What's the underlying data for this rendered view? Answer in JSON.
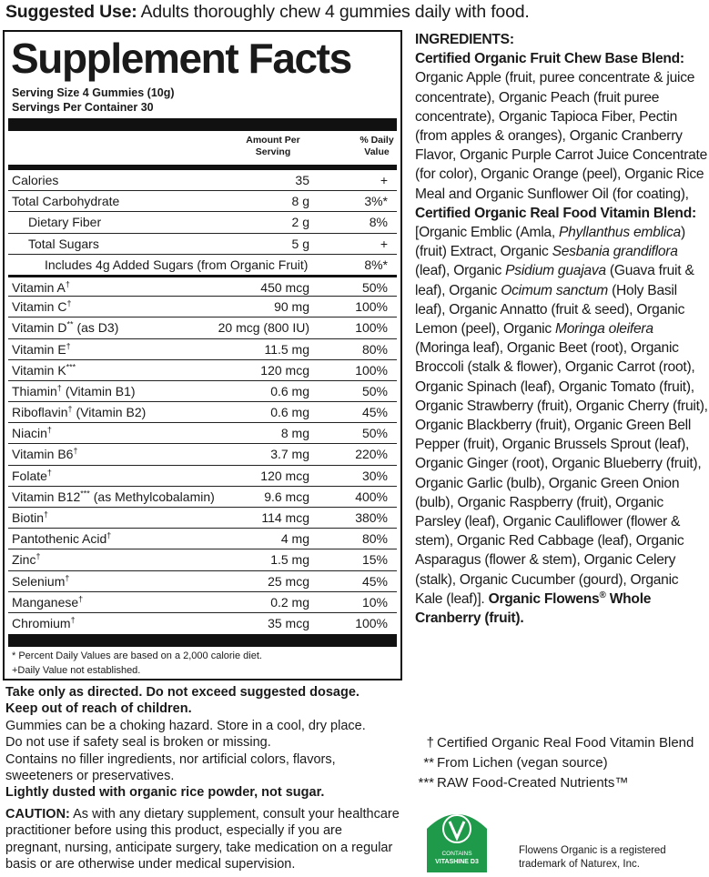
{
  "suggested_use": {
    "label": "Suggested Use:",
    "text": "Adults thoroughly chew 4 gummies daily with food."
  },
  "facts": {
    "title": "Supplement Facts",
    "serving_size": "Serving Size 4 Gummies (10g)",
    "servings": "Servings Per Container 30",
    "col_amount": "Amount Per Serving",
    "col_dv": "% Daily Value",
    "rows": [
      {
        "name": "Calories",
        "amount": "35",
        "dv": "+"
      },
      {
        "name": "Total Carbohydrate",
        "amount": "8 g",
        "dv": "3%*"
      },
      {
        "name": "Dietary Fiber",
        "indent": 1,
        "amount": "2 g",
        "dv": "8%"
      },
      {
        "name": "Total Sugars",
        "indent": 1,
        "amount": "5 g",
        "dv": "+"
      },
      {
        "name": "Includes 4g Added Sugars (from Organic Fruit)",
        "indent": 2,
        "dv": "8%*"
      },
      {
        "name": "Vitamin A",
        "mark": "†",
        "amount": "450 mcg",
        "dv": "50%",
        "rule": "heavy"
      },
      {
        "name": "Vitamin C",
        "mark": "†",
        "amount": "90 mg",
        "dv": "100%"
      },
      {
        "name": "Vitamin D",
        "mark": "**",
        "note": "(as D3)",
        "amount": "20 mcg (800 IU)",
        "dv": "100%"
      },
      {
        "name": "Vitamin E",
        "mark": "†",
        "amount": "11.5 mg",
        "dv": "80%"
      },
      {
        "name": "Vitamin K",
        "mark": "***",
        "amount": "120 mcg",
        "dv": "100%"
      },
      {
        "name": "Thiamin",
        "mark": "†",
        "note": "(Vitamin B1)",
        "amount": "0.6 mg",
        "dv": "50%"
      },
      {
        "name": "Riboflavin",
        "mark": "†",
        "note": "(Vitamin B2)",
        "amount": "0.6 mg",
        "dv": "45%"
      },
      {
        "name": "Niacin",
        "mark": "†",
        "amount": "8 mg",
        "dv": "50%"
      },
      {
        "name": "Vitamin B6",
        "mark": "†",
        "amount": "3.7 mg",
        "dv": "220%"
      },
      {
        "name": "Folate",
        "mark": "†",
        "amount": "120 mcg",
        "dv": "30%"
      },
      {
        "name": "Vitamin B12",
        "mark": "***",
        "note": "(as Methylcobalamin)",
        "amount": "9.6 mcg",
        "dv": "400%"
      },
      {
        "name": "Biotin",
        "mark": "†",
        "amount": "114 mcg",
        "dv": "380%"
      },
      {
        "name": "Pantothenic Acid",
        "mark": "†",
        "amount": "4 mg",
        "dv": "80%"
      },
      {
        "name": "Zinc",
        "mark": "†",
        "amount": "1.5 mg",
        "dv": "15%"
      },
      {
        "name": "Selenium",
        "mark": "†",
        "amount": "25 mcg",
        "dv": "45%"
      },
      {
        "name": "Manganese",
        "mark": "†",
        "amount": "0.2 mg",
        "dv": "10%"
      },
      {
        "name": "Chromium",
        "mark": "†",
        "amount": "35 mcg",
        "dv": "100%"
      }
    ],
    "footnotes": [
      "* Percent Daily Values are based on a 2,000 calorie diet.",
      "+Daily Value not established."
    ]
  },
  "warnings": [
    [
      {
        "text": "Take only as directed. Do not exceed suggested dosage.",
        "style": "bold"
      }
    ],
    [
      {
        "text": "Keep out of reach of children.",
        "style": "bold"
      }
    ],
    [
      {
        "text": "Gummies can be a choking hazard. Store in a cool, dry place."
      }
    ],
    [
      {
        "text": "Do not use if safety seal is broken or missing."
      }
    ],
    [
      {
        "text": "Contains no filler ingredients, nor artificial colors, flavors, sweeteners or preservatives."
      }
    ],
    [
      {
        "text": "Lightly dusted with organic rice powder, not sugar.",
        "style": "bold"
      }
    ]
  ],
  "caution": [
    {
      "text": "CAUTION:",
      "style": "bold"
    },
    {
      "text": " As with any dietary supplement, consult your healthcare practitioner before using this product, especially if you are pregnant, nursing, anticipate surgery, take medication on a regular basis or are otherwise under medical supervision."
    }
  ],
  "ingredients": {
    "heading": "INGREDIENTS:",
    "runs": [
      {
        "text": "Certified Organic Fruit Chew Base Blend:",
        "style": "bold"
      },
      {
        "text": " Organic Apple (fruit, puree concentrate & juice concentrate), Organic Peach (fruit puree concentrate), Organic Tapioca Fiber, Pectin (from apples & oranges), Organic Cranberry Flavor, Organic Purple Carrot Juice Concentrate (for color), Organic Orange (peel), Organic Rice Meal and Organic Sunflower Oil (for coating), "
      },
      {
        "text": "Certified Organic Real Food Vitamin Blend:",
        "style": "bold"
      },
      {
        "text": " [Organic Emblic (Amla, "
      },
      {
        "text": "Phyllanthus emblica",
        "style": "italic"
      },
      {
        "text": ") (fruit) Extract, Organic "
      },
      {
        "text": "Sesbania grandiflora",
        "style": "italic"
      },
      {
        "text": " (leaf), Organic "
      },
      {
        "text": "Psidium guajava",
        "style": "italic"
      },
      {
        "text": " (Guava fruit & leaf), Organic "
      },
      {
        "text": "Ocimum sanctum",
        "style": "italic"
      },
      {
        "text": " (Holy Basil leaf), Organic Annatto (fruit & seed), Organic Lemon (peel), Organic "
      },
      {
        "text": "Moringa oleifera",
        "style": "italic"
      },
      {
        "text": " (Moringa leaf), Organic Beet (root), Organic Broccoli (stalk & flower), Organic Carrot (root), Organic Spinach (leaf), Organic Tomato (fruit), Organic Strawberry (fruit), Organic Cherry (fruit), Organic Blackberry (fruit), Organic Green Bell Pepper (fruit), Organic Brussels Sprout (leaf), Organic Ginger (root), Organic Blueberry (fruit), Organic Garlic (bulb), Organic Green Onion (bulb), Organic Raspberry (fruit), Organic Parsley (leaf), Organic Cauliflower (flower & stem), Organic Red Cabbage (leaf), Organic Asparagus (flower & stem), Organic Celery (stalk), Organic Cucumber (gourd), Organic Kale (leaf)]. "
      },
      {
        "text": "Organic Flowens",
        "style": "bold"
      },
      {
        "text": "®",
        "style": "bold-sup"
      },
      {
        "text": " Whole Cranberry (fruit).",
        "style": "bold"
      }
    ]
  },
  "symbols": [
    {
      "mark": "†",
      "text": "Certified Organic Real Food Vitamin Blend"
    },
    {
      "mark": "**",
      "text": "From Lichen (vegan source)"
    },
    {
      "mark": "***",
      "text": "RAW Food-Created Nutrients™"
    }
  ],
  "badge": {
    "line1": "CONTAINS",
    "line2": "VITASHINE D3"
  },
  "trademark": "Flowens Organic is a registered trademark of Naturex, Inc."
}
